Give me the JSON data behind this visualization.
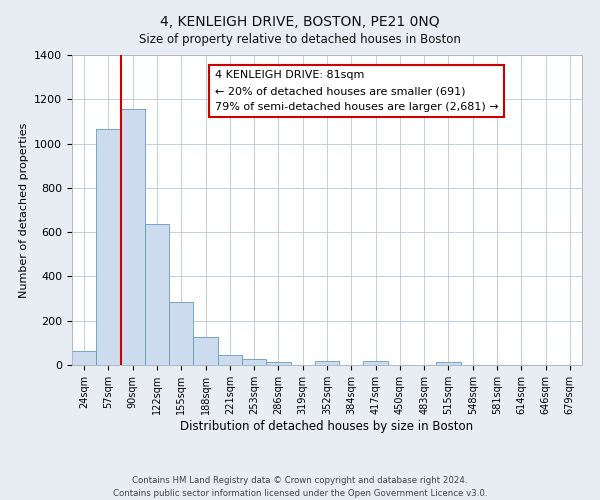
{
  "title": "4, KENLEIGH DRIVE, BOSTON, PE21 0NQ",
  "subtitle": "Size of property relative to detached houses in Boston",
  "xlabel": "Distribution of detached houses by size in Boston",
  "ylabel": "Number of detached properties",
  "bar_labels": [
    "24sqm",
    "57sqm",
    "90sqm",
    "122sqm",
    "155sqm",
    "188sqm",
    "221sqm",
    "253sqm",
    "286sqm",
    "319sqm",
    "352sqm",
    "384sqm",
    "417sqm",
    "450sqm",
    "483sqm",
    "515sqm",
    "548sqm",
    "581sqm",
    "614sqm",
    "646sqm",
    "679sqm"
  ],
  "bar_values": [
    65,
    1065,
    1155,
    635,
    285,
    125,
    45,
    25,
    15,
    0,
    20,
    0,
    20,
    0,
    0,
    15,
    0,
    0,
    0,
    0,
    0
  ],
  "bar_color": "#ccdcee",
  "bar_edge_color": "#6699bb",
  "ylim": [
    0,
    1400
  ],
  "yticks": [
    0,
    200,
    400,
    600,
    800,
    1000,
    1200,
    1400
  ],
  "vline_color": "#cc0000",
  "annotation_title": "4 KENLEIGH DRIVE: 81sqm",
  "annotation_line1": "← 20% of detached houses are smaller (691)",
  "annotation_line2": "79% of semi-detached houses are larger (2,681) →",
  "annotation_box_color": "#ffffff",
  "annotation_box_edge": "#cc0000",
  "footer_line1": "Contains HM Land Registry data © Crown copyright and database right 2024.",
  "footer_line2": "Contains public sector information licensed under the Open Government Licence v3.0.",
  "bg_color": "#e8edf4",
  "plot_bg_color": "#ffffff"
}
